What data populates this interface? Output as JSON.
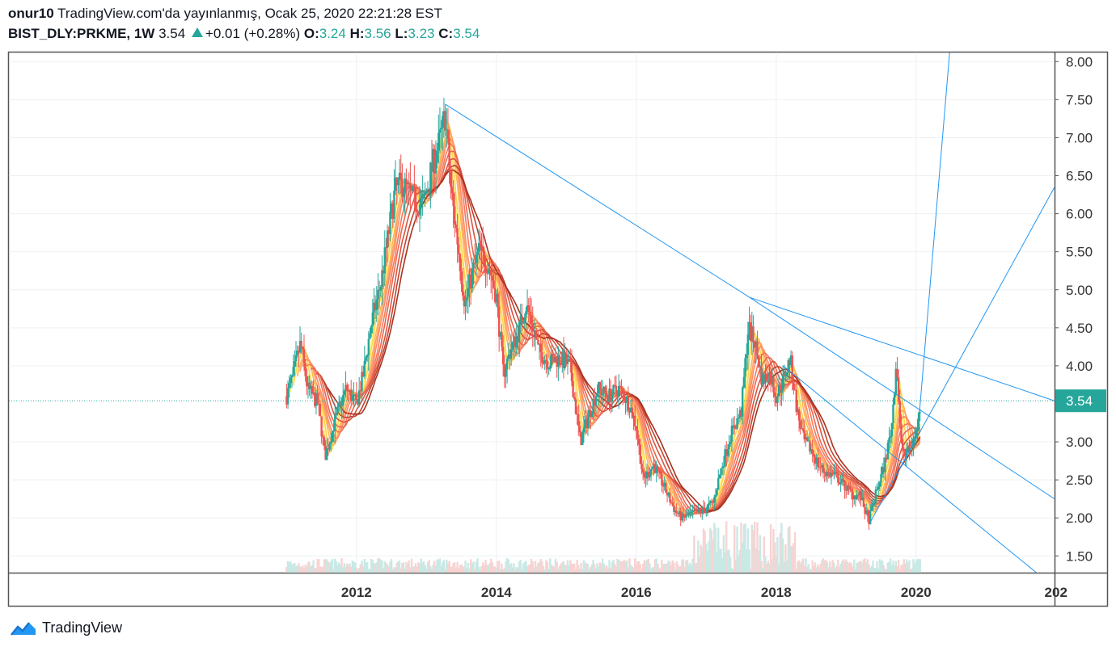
{
  "header": {
    "author": "onur10",
    "published_text": "TradingView.com'da yayınlanmış, Ocak 25, 2020 22:21:28 EST",
    "symbol": "BIST_DLY:PRKME, 1W",
    "last": "3.54",
    "change": "+0.01 (+0.28%)",
    "open_label": "O:",
    "open": "3.24",
    "high_label": "H:",
    "high": "3.56",
    "low_label": "L:",
    "low": "3.23",
    "close_label": "C:",
    "close": "3.54"
  },
  "footer": {
    "brand": "TradingView",
    "logo_icon": "tradingview-cloud-icon"
  },
  "colors": {
    "up": "#26a69a",
    "down": "#ef5350",
    "trendline": "#2196f3",
    "price_badge": "#26a69a"
  },
  "chart_data": {
    "type": "candlestick",
    "interval": "1W",
    "price_label": "3.54",
    "yticks": [
      "8.00",
      "7.50",
      "7.00",
      "6.50",
      "6.00",
      "5.50",
      "5.00",
      "4.50",
      "4.00",
      "3.00",
      "2.50",
      "2.00",
      "1.50"
    ],
    "xticks": [
      "2012",
      "2014",
      "2016",
      "2018",
      "2020",
      "202"
    ],
    "ylim": [
      1.28,
      8.12
    ],
    "xlim": [
      2007.03,
      2021.98
    ],
    "price_points": [
      [
        2011.0,
        3.6
      ],
      [
        2011.1,
        3.9
      ],
      [
        2011.2,
        4.3
      ],
      [
        2011.3,
        3.7
      ],
      [
        2011.45,
        3.5
      ],
      [
        2011.55,
        2.8
      ],
      [
        2011.7,
        3.3
      ],
      [
        2011.85,
        3.7
      ],
      [
        2012.0,
        3.5
      ],
      [
        2012.1,
        3.9
      ],
      [
        2012.2,
        4.5
      ],
      [
        2012.35,
        5.1
      ],
      [
        2012.45,
        5.7
      ],
      [
        2012.55,
        6.3
      ],
      [
        2012.65,
        6.4
      ],
      [
        2012.8,
        6.2
      ],
      [
        2012.95,
        6.1
      ],
      [
        2013.05,
        6.5
      ],
      [
        2013.2,
        7.0
      ],
      [
        2013.27,
        7.3
      ],
      [
        2013.35,
        6.3
      ],
      [
        2013.45,
        5.6
      ],
      [
        2013.55,
        4.8
      ],
      [
        2013.65,
        5.2
      ],
      [
        2013.75,
        5.5
      ],
      [
        2013.9,
        5.3
      ],
      [
        2014.0,
        4.9
      ],
      [
        2014.1,
        3.9
      ],
      [
        2014.2,
        4.2
      ],
      [
        2014.3,
        4.4
      ],
      [
        2014.42,
        4.8
      ],
      [
        2014.5,
        4.6
      ],
      [
        2014.6,
        4.2
      ],
      [
        2014.75,
        4.05
      ],
      [
        2014.9,
        4.1
      ],
      [
        2015.05,
        4.0
      ],
      [
        2015.2,
        3.0
      ],
      [
        2015.3,
        3.3
      ],
      [
        2015.45,
        3.7
      ],
      [
        2015.6,
        3.6
      ],
      [
        2015.75,
        3.7
      ],
      [
        2015.9,
        3.5
      ],
      [
        2016.0,
        3.2
      ],
      [
        2016.1,
        2.5
      ],
      [
        2016.25,
        2.7
      ],
      [
        2016.4,
        2.4
      ],
      [
        2016.55,
        2.1
      ],
      [
        2016.65,
        2.0
      ],
      [
        2016.8,
        2.05
      ],
      [
        2016.95,
        2.1
      ],
      [
        2017.1,
        2.2
      ],
      [
        2017.2,
        2.6
      ],
      [
        2017.35,
        3.1
      ],
      [
        2017.5,
        3.4
      ],
      [
        2017.6,
        4.5
      ],
      [
        2017.7,
        4.3
      ],
      [
        2017.8,
        3.8
      ],
      [
        2017.9,
        3.9
      ],
      [
        2018.0,
        3.6
      ],
      [
        2018.1,
        3.8
      ],
      [
        2018.2,
        4.1
      ],
      [
        2018.3,
        3.4
      ],
      [
        2018.4,
        3.0
      ],
      [
        2018.5,
        2.9
      ],
      [
        2018.6,
        2.7
      ],
      [
        2018.7,
        2.6
      ],
      [
        2018.85,
        2.55
      ],
      [
        2019.0,
        2.4
      ],
      [
        2019.1,
        2.3
      ],
      [
        2019.2,
        2.3
      ],
      [
        2019.32,
        1.95
      ],
      [
        2019.45,
        2.4
      ],
      [
        2019.55,
        2.7
      ],
      [
        2019.65,
        3.2
      ],
      [
        2019.72,
        4.1
      ],
      [
        2019.78,
        3.0
      ],
      [
        2019.85,
        2.8
      ],
      [
        2019.92,
        2.95
      ],
      [
        2020.0,
        3.1
      ],
      [
        2020.07,
        3.54
      ]
    ],
    "trendlines": [
      [
        [
          2013.27,
          7.44
        ],
        [
          2017.62,
          4.9
        ]
      ],
      [
        [
          2017.62,
          4.9
        ],
        [
          2021.98,
          3.54
        ]
      ],
      [
        [
          2017.62,
          4.9
        ],
        [
          2021.98,
          2.25
        ]
      ],
      [
        [
          2018.1,
          4.0
        ],
        [
          2021.72,
          1.28
        ]
      ],
      [
        [
          2019.35,
          1.95
        ],
        [
          2021.98,
          6.35
        ]
      ],
      [
        [
          2020.05,
          3.4
        ],
        [
          2020.48,
          8.12
        ]
      ]
    ]
  }
}
